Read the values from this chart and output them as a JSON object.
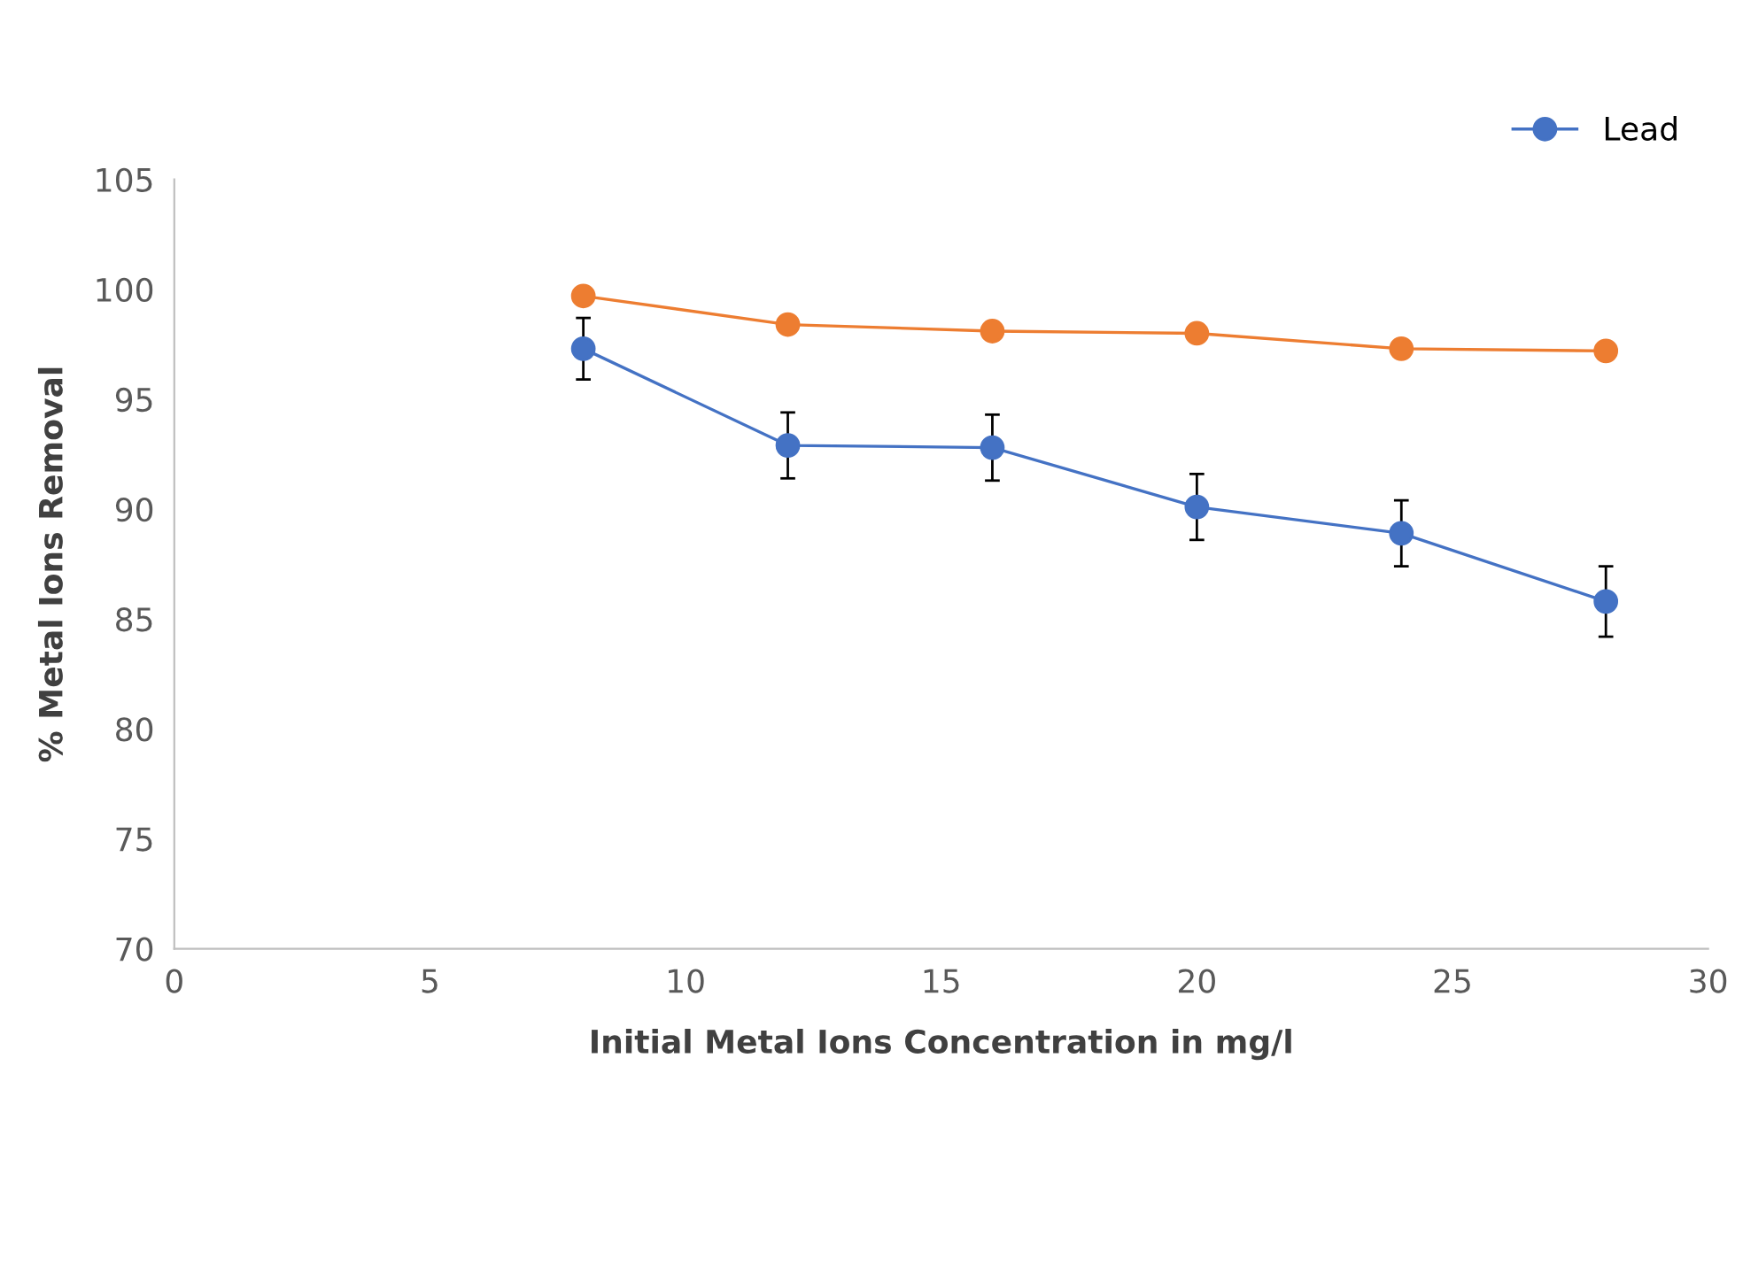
{
  "chart_data": {
    "type": "line",
    "xlabel": "Initial Metal Ions Concentration in mg/l",
    "ylabel": "% Metal Ions Removal",
    "x": [
      8,
      12,
      16,
      20,
      24,
      28
    ],
    "series": [
      {
        "name": "Lead",
        "color": "#4472c4",
        "values": [
          97.3,
          92.9,
          92.8,
          90.1,
          88.9,
          85.8
        ],
        "errors": [
          1.4,
          1.5,
          1.5,
          1.5,
          1.5,
          1.6
        ]
      },
      {
        "color": "#ed7d31",
        "values": [
          99.7,
          98.4,
          98.1,
          98.0,
          97.3,
          97.2
        ]
      }
    ],
    "xlim": [
      0,
      30
    ],
    "xticks": [
      0,
      5,
      10,
      15,
      20,
      25,
      30
    ],
    "ylim": [
      70,
      105
    ],
    "yticks": [
      70,
      75,
      80,
      85,
      90,
      95,
      100,
      105
    ],
    "marker": "circle",
    "line_style": "solid",
    "grid": false,
    "legend": "top right"
  }
}
